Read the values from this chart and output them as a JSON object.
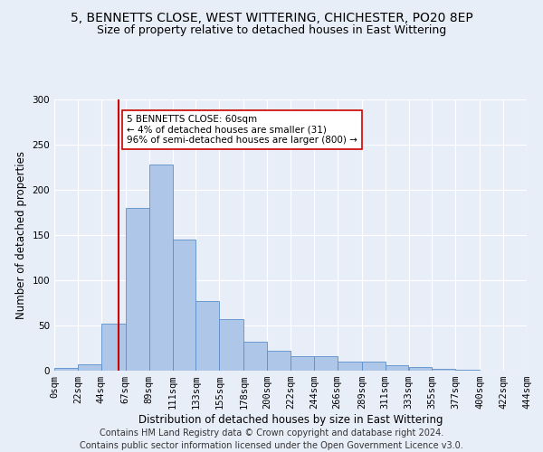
{
  "title": "5, BENNETTS CLOSE, WEST WITTERING, CHICHESTER, PO20 8EP",
  "subtitle": "Size of property relative to detached houses in East Wittering",
  "xlabel": "Distribution of detached houses by size in East Wittering",
  "ylabel": "Number of detached properties",
  "footer_line1": "Contains HM Land Registry data © Crown copyright and database right 2024.",
  "footer_line2": "Contains public sector information licensed under the Open Government Licence v3.0.",
  "bar_edges": [
    0,
    22,
    44,
    67,
    89,
    111,
    133,
    155,
    178,
    200,
    222,
    244,
    266,
    289,
    311,
    333,
    355,
    377,
    400,
    422,
    444
  ],
  "bar_values": [
    3,
    7,
    52,
    180,
    228,
    145,
    77,
    57,
    32,
    22,
    16,
    16,
    10,
    10,
    6,
    4,
    2,
    1,
    0,
    0,
    2
  ],
  "tick_labels": [
    "0sqm",
    "22sqm",
    "44sqm",
    "67sqm",
    "89sqm",
    "111sqm",
    "133sqm",
    "155sqm",
    "178sqm",
    "200sqm",
    "222sqm",
    "244sqm",
    "266sqm",
    "289sqm",
    "311sqm",
    "333sqm",
    "355sqm",
    "377sqm",
    "400sqm",
    "422sqm",
    "444sqm"
  ],
  "bar_color": "#aec6e8",
  "bar_edge_color": "#5b8fc9",
  "vline_x": 60,
  "vline_color": "#cc0000",
  "annotation_text": "5 BENNETTS CLOSE: 60sqm\n← 4% of detached houses are smaller (31)\n96% of semi-detached houses are larger (800) →",
  "annotation_box_color": "#ffffff",
  "annotation_box_edge": "#cc0000",
  "ylim": [
    0,
    300
  ],
  "yticks": [
    0,
    50,
    100,
    150,
    200,
    250,
    300
  ],
  "background_color": "#e8eef8",
  "grid_color": "#ffffff",
  "title_fontsize": 10,
  "subtitle_fontsize": 9,
  "axis_label_fontsize": 8.5,
  "tick_fontsize": 7.5,
  "footer_fontsize": 7
}
